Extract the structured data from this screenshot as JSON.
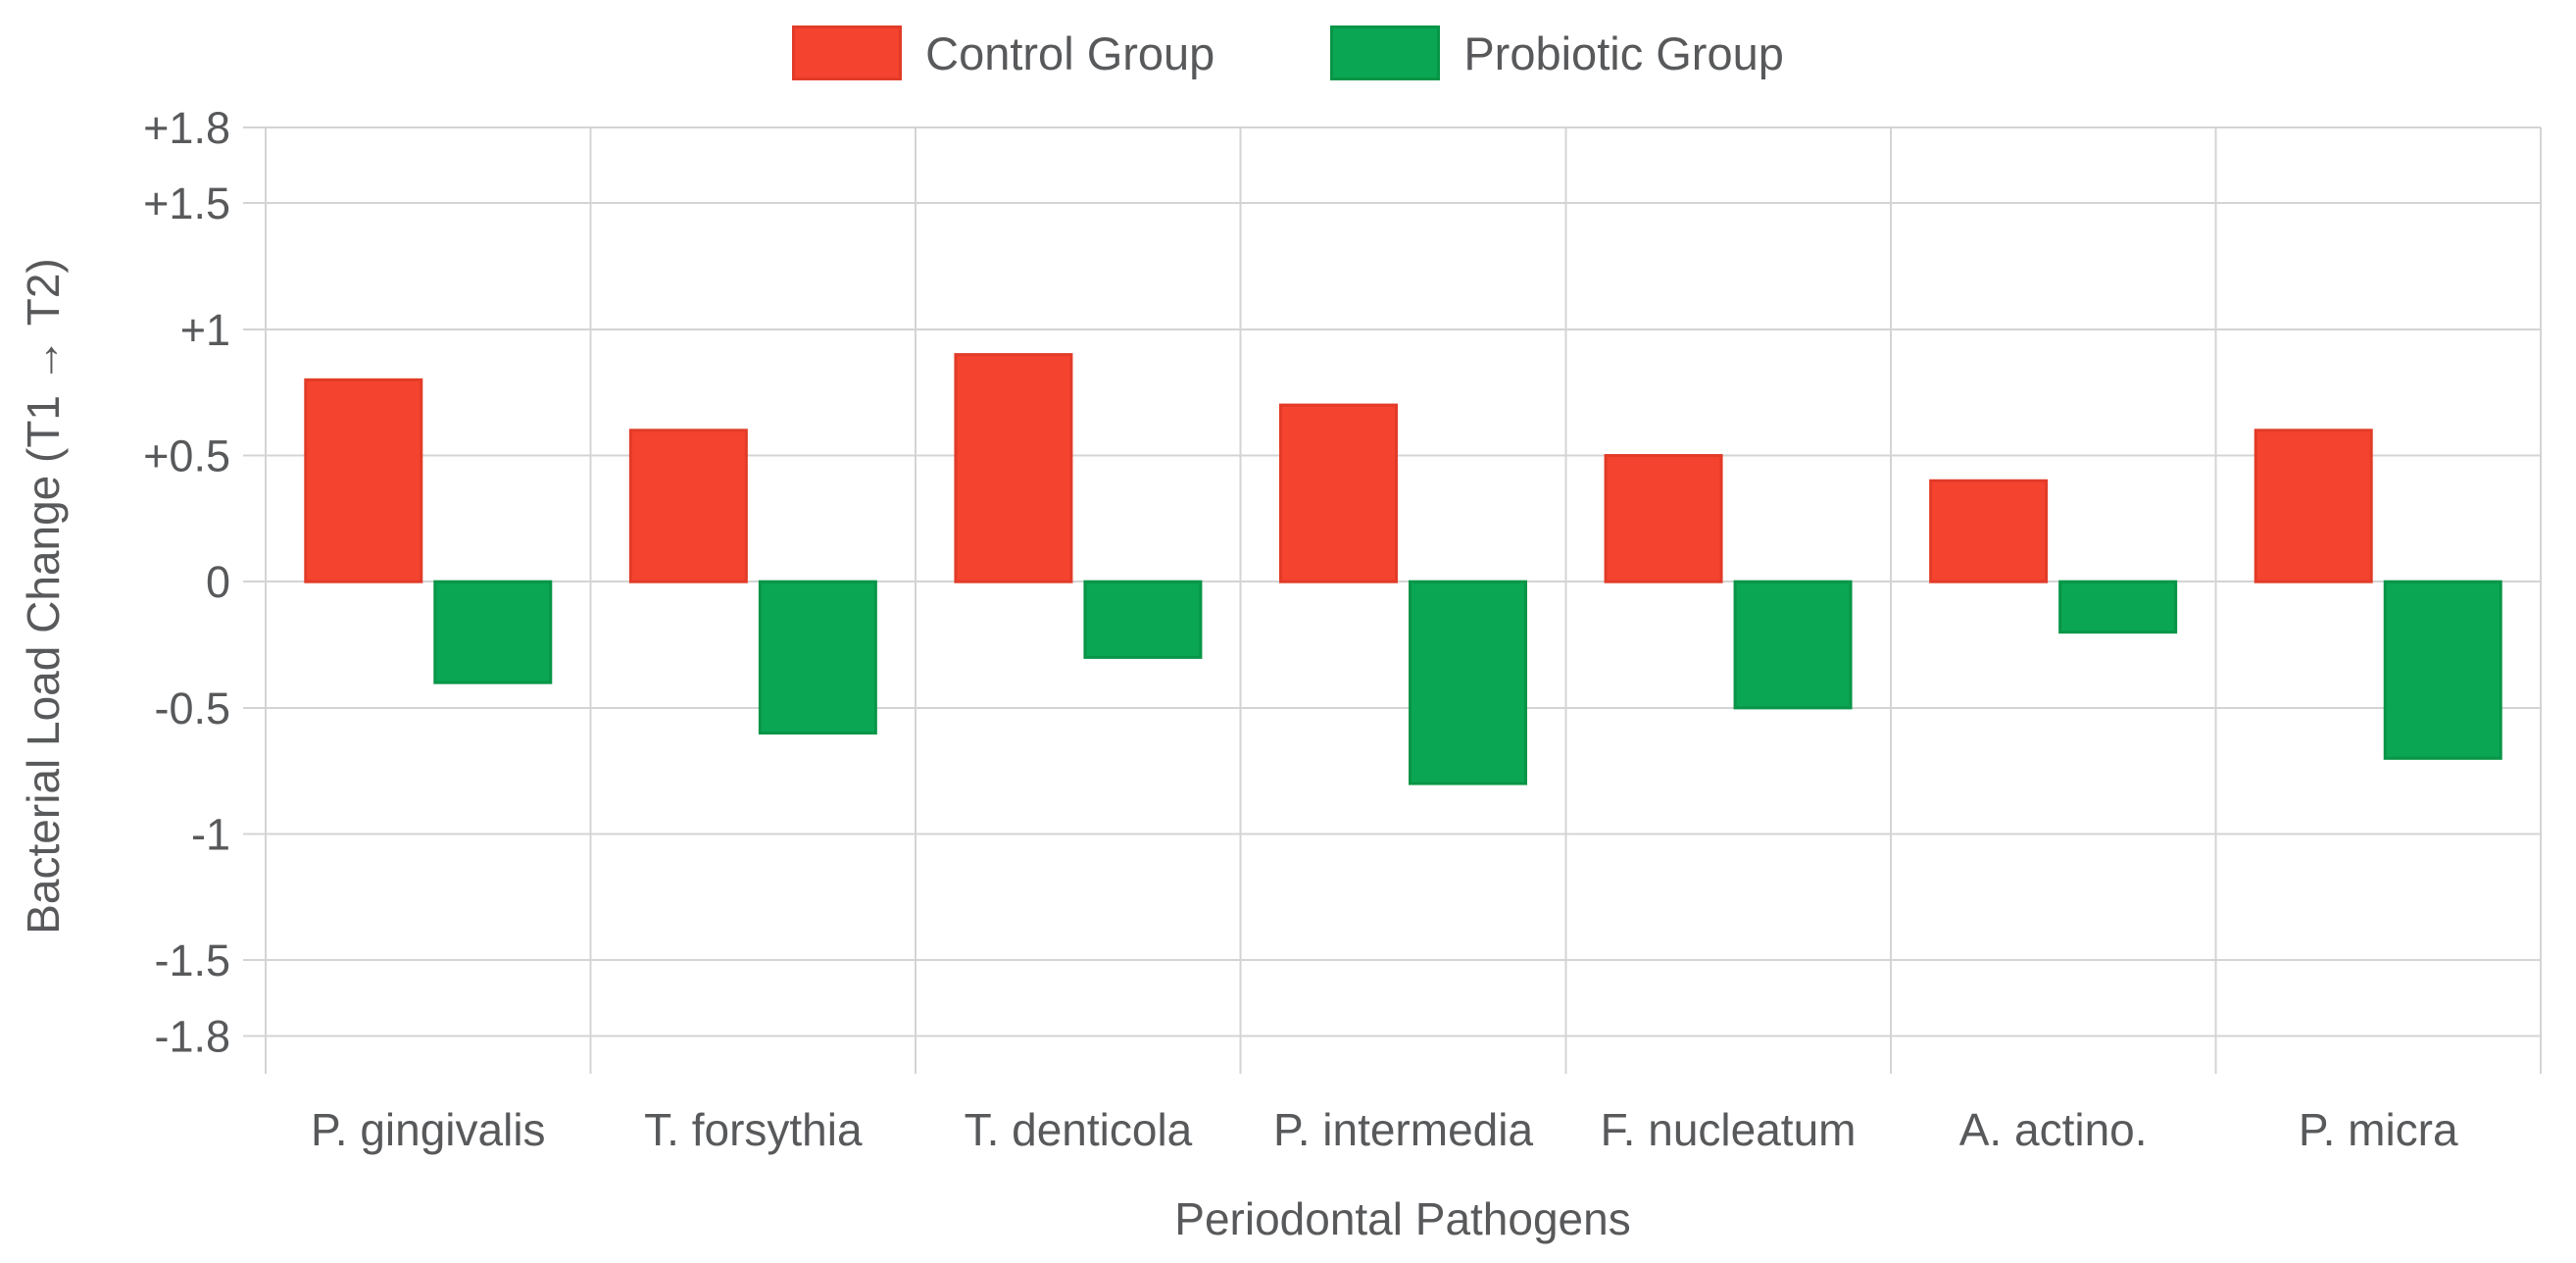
{
  "chart_data": {
    "type": "bar",
    "title": "",
    "categories": [
      "P. gingivalis",
      "T. forsythia",
      "T. denticola",
      "P. intermedia",
      "F. nucleatum",
      "A. actino.",
      "P. micra"
    ],
    "series": [
      {
        "name": "Control Group",
        "color": "#f4432e",
        "border_color": "#e23b28",
        "values": [
          0.8,
          0.6,
          0.9,
          0.7,
          0.5,
          0.4,
          0.6
        ]
      },
      {
        "name": "Probiotic Group",
        "color": "#0aa653",
        "border_color": "#089547",
        "values": [
          -0.4,
          -0.6,
          -0.3,
          -0.8,
          -0.5,
          -0.2,
          -0.7
        ]
      }
    ],
    "xlabel": "Periodontal Pathogens",
    "ylabel": "Bacterial Load Change (T1 → T2)",
    "ylim": [
      -1.95,
      1.8
    ],
    "y_ticks": [
      {
        "value": 1.8,
        "label": "+1.8"
      },
      {
        "value": 1.5,
        "label": "+1.5"
      },
      {
        "value": 1.0,
        "label": "+1"
      },
      {
        "value": 0.5,
        "label": "+0.5"
      },
      {
        "value": 0,
        "label": "0"
      },
      {
        "value": -0.5,
        "label": "-0.5"
      },
      {
        "value": -1.0,
        "label": "-1"
      },
      {
        "value": -1.5,
        "label": "-1.5"
      },
      {
        "value": -1.8,
        "label": "-1.8"
      }
    ],
    "grid": true,
    "legend_position": "top"
  },
  "colors": {
    "grid": "#d4d4d4",
    "text": "#58595b",
    "background": "#ffffff"
  }
}
